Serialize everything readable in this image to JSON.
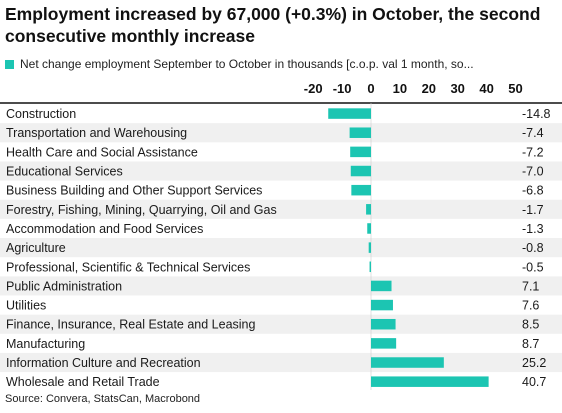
{
  "title": "Employment increased by 67,000 (+0.3%) in October, the second consecutive monthly increase",
  "legend_label": "Net change employment September to October in thousands [c.o.p. val 1 month, so...",
  "source": "Source: Convera, StatsCan, Macrobond",
  "colors": {
    "bar": "#1cc5b2",
    "stripe": "#f0f0f0",
    "text": "#1a1a1a",
    "axis": "#111111"
  },
  "chart_data": {
    "type": "bar",
    "orientation": "horizontal",
    "title": "Employment increased by 67,000 (+0.3%) in October, the second consecutive monthly increase",
    "xlim": [
      -20,
      50
    ],
    "xticks": [
      -20,
      -10,
      0,
      10,
      20,
      30,
      40,
      50
    ],
    "xtick_labels": [
      "-20",
      "-10",
      "0",
      "10",
      "20",
      "30",
      "40",
      "50"
    ],
    "axis_position": "top",
    "grid": false,
    "legend_position": "top-left",
    "series": [
      {
        "name": "Net change employment September to October in thousands [c.o.p. val 1 month, so...",
        "values": [
          -14.8,
          -7.4,
          -7.2,
          -7.0,
          -6.8,
          -1.7,
          -1.3,
          -0.8,
          -0.5,
          7.1,
          7.6,
          8.5,
          8.7,
          25.2,
          40.7
        ]
      }
    ],
    "categories": [
      "Construction",
      "Transportation and Warehousing",
      "Health Care and Social Assistance",
      "Educational Services",
      "Business Building and Other Support Services",
      "Forestry, Fishing, Mining, Quarrying, Oil and Gas",
      "Accommodation and Food Services",
      "Agriculture",
      "Professional, Scientific & Technical Services",
      "Public Administration",
      "Utilities",
      "Finance, Insurance, Real Estate and Leasing",
      "Manufacturing",
      "Information Culture and Recreation",
      "Wholesale and Retail Trade"
    ],
    "value_labels": [
      "-14.8",
      "-7.4",
      "-7.2",
      "-7.0",
      "-6.8",
      "-1.7",
      "-1.3",
      "-0.8",
      "-0.5",
      "7.1",
      "7.6",
      "8.5",
      "8.7",
      "25.2",
      "40.7"
    ]
  }
}
